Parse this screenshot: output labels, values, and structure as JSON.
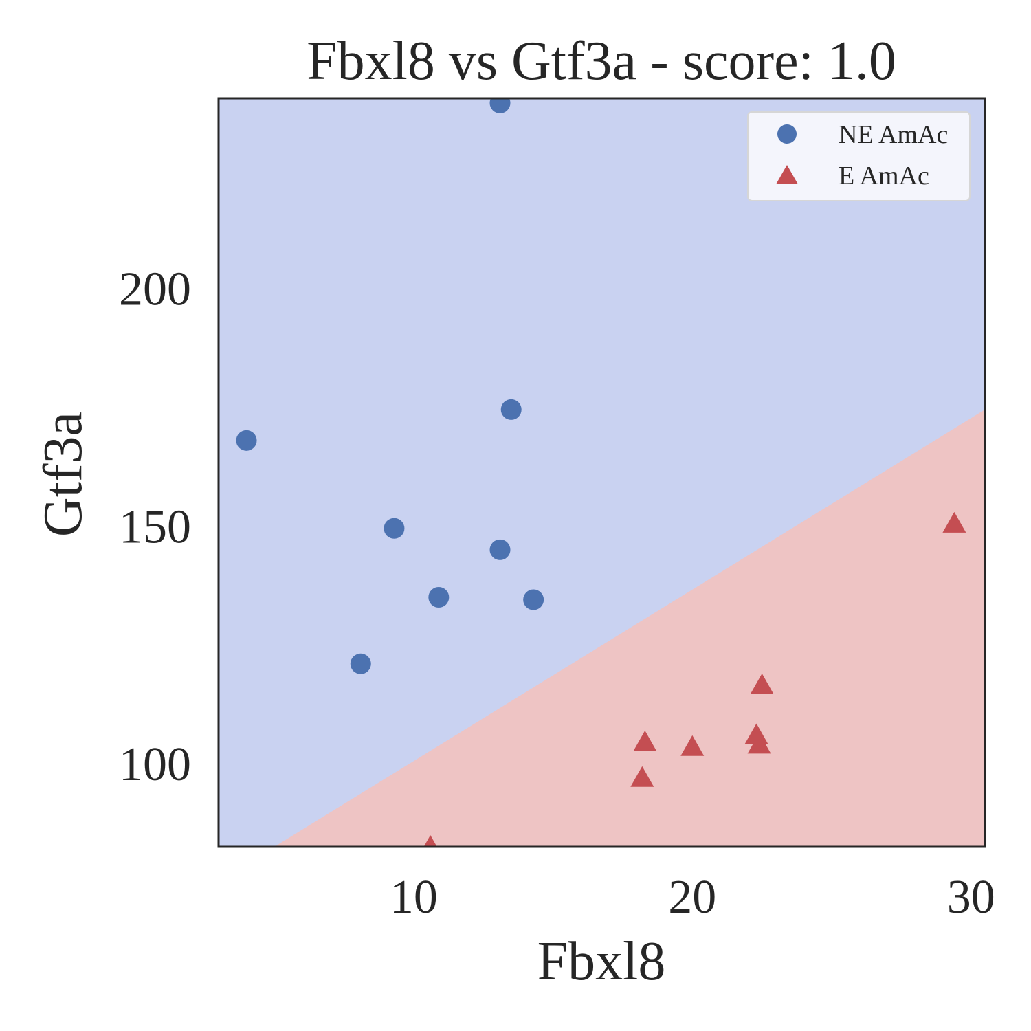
{
  "chart_data": {
    "type": "scatter",
    "title": "Fbxl8 vs Gtf3a - score: 1.0",
    "xlabel": "Fbxl8",
    "ylabel": "Gtf3a",
    "xlim": [
      3.0,
      30.5
    ],
    "ylim": [
      82.5,
      240.0
    ],
    "xticks": [
      10,
      20,
      30
    ],
    "yticks": [
      100,
      150,
      200
    ],
    "grid": false,
    "legend_position": "top-right",
    "decision_boundary": {
      "description": "linear classifier boundary",
      "points": [
        [
          5.0,
          82.5
        ],
        [
          30.5,
          174.5
        ]
      ],
      "regions": [
        {
          "label": "NE AmAc",
          "side": "upper-left",
          "color": "#c9d2f1"
        },
        {
          "label": "E AmAc",
          "side": "lower-right",
          "color": "#eec4c4"
        }
      ]
    },
    "series": [
      {
        "name": "NE AmAc",
        "marker": "circle",
        "color": "#4c72b0",
        "points": [
          [
            13.1,
            239.0
          ],
          [
            4.0,
            168.0
          ],
          [
            13.5,
            174.5
          ],
          [
            9.3,
            149.5
          ],
          [
            13.1,
            145.0
          ],
          [
            10.9,
            135.0
          ],
          [
            14.3,
            134.5
          ],
          [
            8.1,
            121.0
          ]
        ]
      },
      {
        "name": "E AmAc",
        "marker": "triangle",
        "color": "#c44e52",
        "points": [
          [
            29.4,
            150.5
          ],
          [
            22.5,
            116.5
          ],
          [
            22.3,
            106.0
          ],
          [
            22.4,
            104.0
          ],
          [
            18.3,
            104.5
          ],
          [
            20.0,
            103.5
          ],
          [
            18.2,
            97.0
          ],
          [
            10.6,
            82.5
          ]
        ]
      }
    ]
  }
}
